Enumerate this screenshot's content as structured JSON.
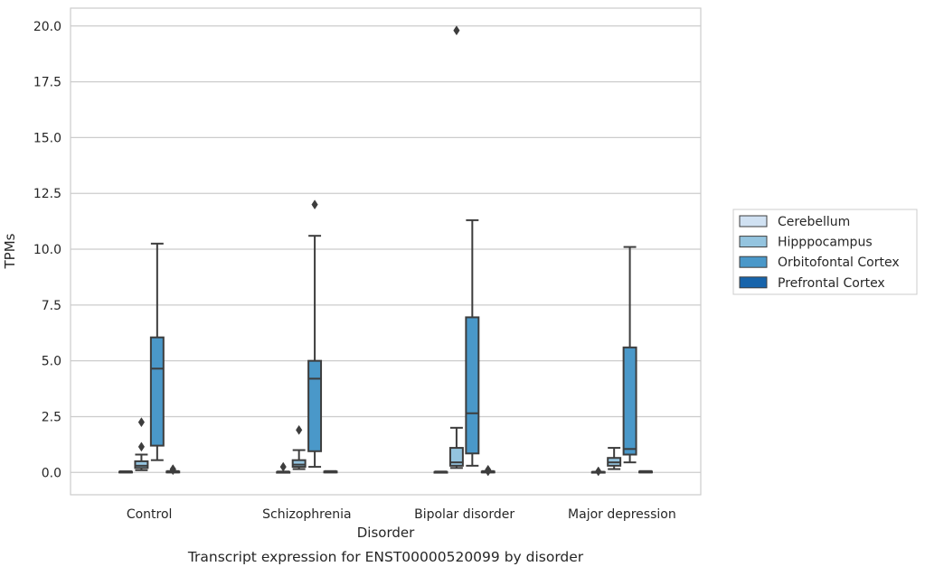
{
  "caption": "Transcript expression for ENST00000520099 by disorder",
  "chart_data": {
    "type": "boxplot",
    "title": "",
    "xlabel": "Disorder",
    "ylabel": "TPMs",
    "ylim": [
      -1.0,
      20.8
    ],
    "yticks": [
      0.0,
      2.5,
      5.0,
      7.5,
      10.0,
      12.5,
      15.0,
      17.5,
      20.0
    ],
    "ytick_labels": [
      "0.0",
      "2.5",
      "5.0",
      "7.5",
      "10.0",
      "12.5",
      "15.0",
      "17.5",
      "20.0"
    ],
    "categories": [
      "Control",
      "Schizophrenia",
      "Bipolar disorder",
      "Major depression"
    ],
    "grid": true,
    "legend_position": "right",
    "series": [
      {
        "name": "Cerebellum",
        "color": "#d0e1f2",
        "boxes": [
          {
            "whislo": 0.0,
            "q1": 0.0,
            "med": 0.01,
            "q3": 0.03,
            "whishi": 0.05,
            "fliers": []
          },
          {
            "whislo": 0.0,
            "q1": 0.0,
            "med": 0.01,
            "q3": 0.02,
            "whishi": 0.04,
            "fliers": [
              0.25
            ]
          },
          {
            "whislo": 0.0,
            "q1": 0.0,
            "med": 0.01,
            "q3": 0.02,
            "whishi": 0.04,
            "fliers": []
          },
          {
            "whislo": 0.0,
            "q1": 0.0,
            "med": 0.01,
            "q3": 0.02,
            "whishi": 0.03,
            "fliers": [
              0.05
            ]
          }
        ]
      },
      {
        "name": "Hipppocampus",
        "color": "#94c4df",
        "boxes": [
          {
            "whislo": 0.1,
            "q1": 0.2,
            "med": 0.3,
            "q3": 0.5,
            "whishi": 0.8,
            "fliers": [
              1.15,
              2.25
            ]
          },
          {
            "whislo": 0.15,
            "q1": 0.25,
            "med": 0.35,
            "q3": 0.55,
            "whishi": 1.0,
            "fliers": [
              1.9
            ]
          },
          {
            "whislo": 0.2,
            "q1": 0.3,
            "med": 0.45,
            "q3": 1.1,
            "whishi": 2.0,
            "fliers": [
              19.8
            ]
          },
          {
            "whislo": 0.15,
            "q1": 0.3,
            "med": 0.45,
            "q3": 0.65,
            "whishi": 1.1,
            "fliers": []
          }
        ]
      },
      {
        "name": "Orbitofontal Cortex",
        "color": "#4a98c9",
        "boxes": [
          {
            "whislo": 0.55,
            "q1": 1.2,
            "med": 4.65,
            "q3": 6.05,
            "whishi": 10.25,
            "fliers": []
          },
          {
            "whislo": 0.25,
            "q1": 0.95,
            "med": 4.2,
            "q3": 5.0,
            "whishi": 10.6,
            "fliers": [
              12.0
            ]
          },
          {
            "whislo": 0.3,
            "q1": 0.85,
            "med": 2.65,
            "q3": 6.95,
            "whishi": 11.3,
            "fliers": []
          },
          {
            "whislo": 0.45,
            "q1": 0.8,
            "med": 1.05,
            "q3": 5.6,
            "whishi": 10.1,
            "fliers": []
          }
        ]
      },
      {
        "name": "Prefrontal Cortex",
        "color": "#1764ab",
        "boxes": [
          {
            "whislo": 0.0,
            "q1": 0.0,
            "med": 0.02,
            "q3": 0.04,
            "whishi": 0.06,
            "fliers": [
              0.1,
              0.15
            ]
          },
          {
            "whislo": 0.0,
            "q1": 0.0,
            "med": 0.02,
            "q3": 0.04,
            "whishi": 0.06,
            "fliers": []
          },
          {
            "whislo": 0.0,
            "q1": 0.0,
            "med": 0.02,
            "q3": 0.04,
            "whishi": 0.06,
            "fliers": [
              0.05,
              0.12
            ]
          },
          {
            "whislo": 0.0,
            "q1": 0.0,
            "med": 0.02,
            "q3": 0.04,
            "whishi": 0.06,
            "fliers": []
          }
        ]
      }
    ]
  }
}
